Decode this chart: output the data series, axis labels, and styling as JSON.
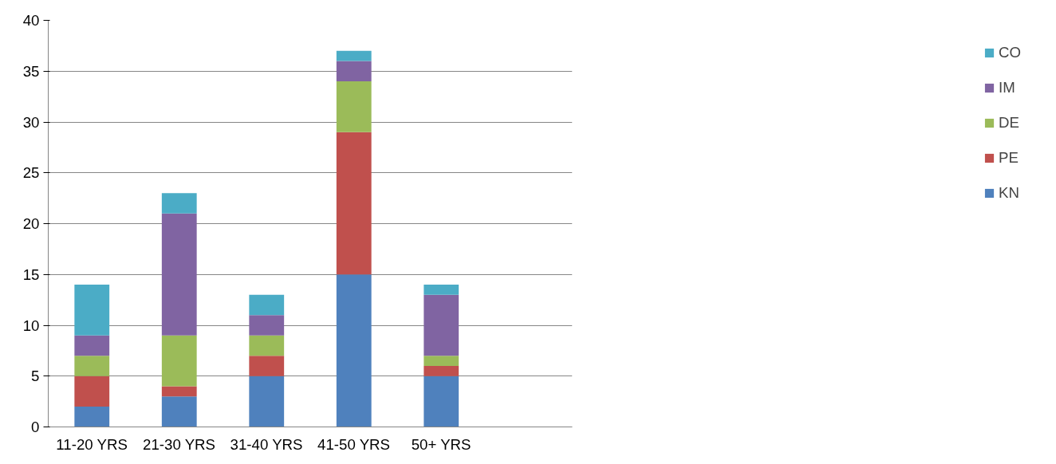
{
  "chart_data": {
    "type": "bar",
    "stacked": true,
    "categories": [
      "11-20 YRS",
      "21-30 YRS",
      "31-40 YRS",
      "41-50 YRS",
      "50+ YRS",
      null
    ],
    "series": [
      {
        "name": "KN",
        "color": "#4f81bd",
        "values": [
          2,
          3,
          5,
          15,
          5,
          null
        ]
      },
      {
        "name": "PE",
        "color": "#c0504d",
        "values": [
          3,
          1,
          2,
          14,
          1,
          null
        ]
      },
      {
        "name": "DE",
        "color": "#9bbb59",
        "values": [
          2,
          5,
          2,
          5,
          1,
          null
        ]
      },
      {
        "name": "IM",
        "color": "#8064a2",
        "values": [
          2,
          12,
          2,
          2,
          6,
          null
        ]
      },
      {
        "name": "CO",
        "color": "#4bacc6",
        "values": [
          5,
          2,
          2,
          1,
          1,
          null
        ]
      }
    ],
    "ylim": [
      0,
      40
    ],
    "yticks": [
      0,
      5,
      10,
      15,
      20,
      25,
      30,
      35,
      40
    ],
    "grid": "y",
    "legend": "right"
  }
}
